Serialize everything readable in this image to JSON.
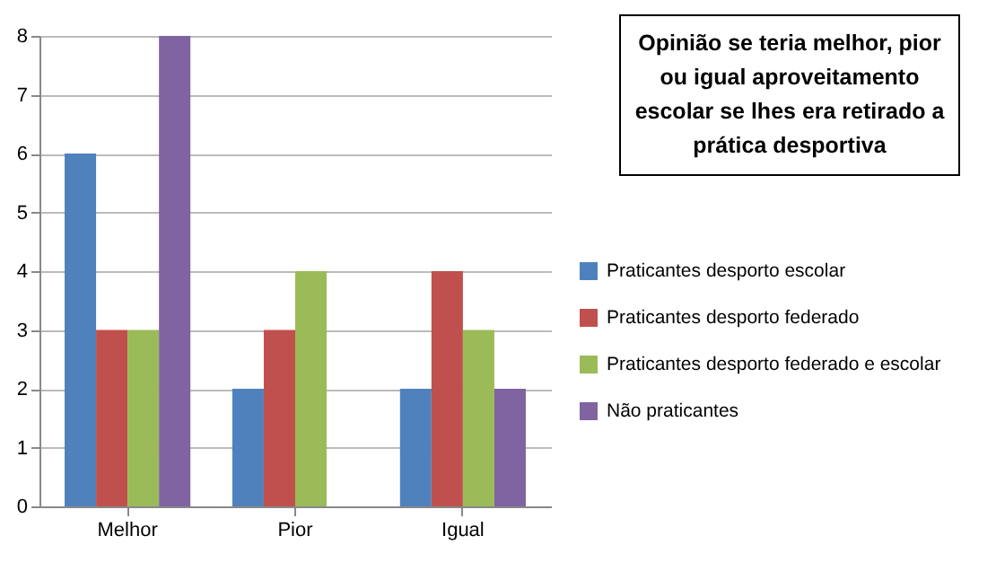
{
  "chart_data": {
    "type": "bar",
    "title": "Opinião se teria melhor, pior ou igual aproveitamento escolar se lhes era retirado a prática desportiva",
    "categories": [
      "Melhor",
      "Pior",
      "Igual"
    ],
    "series": [
      {
        "name": "Praticantes desporto escolar",
        "color": "#4f81bd",
        "values": [
          6,
          2,
          2
        ]
      },
      {
        "name": "Praticantes desporto federado",
        "color": "#c0504d",
        "values": [
          3,
          3,
          4
        ]
      },
      {
        "name": "Praticantes desporto federado e escolar",
        "color": "#9bbb59",
        "values": [
          3,
          4,
          3
        ]
      },
      {
        "name": "Não praticantes",
        "color": "#8064a2",
        "values": [
          8,
          0,
          2
        ]
      }
    ],
    "ylim": [
      0,
      8
    ],
    "yticks": [
      0,
      1,
      2,
      3,
      4,
      5,
      6,
      7,
      8
    ],
    "grid": "y",
    "legend": "right"
  }
}
